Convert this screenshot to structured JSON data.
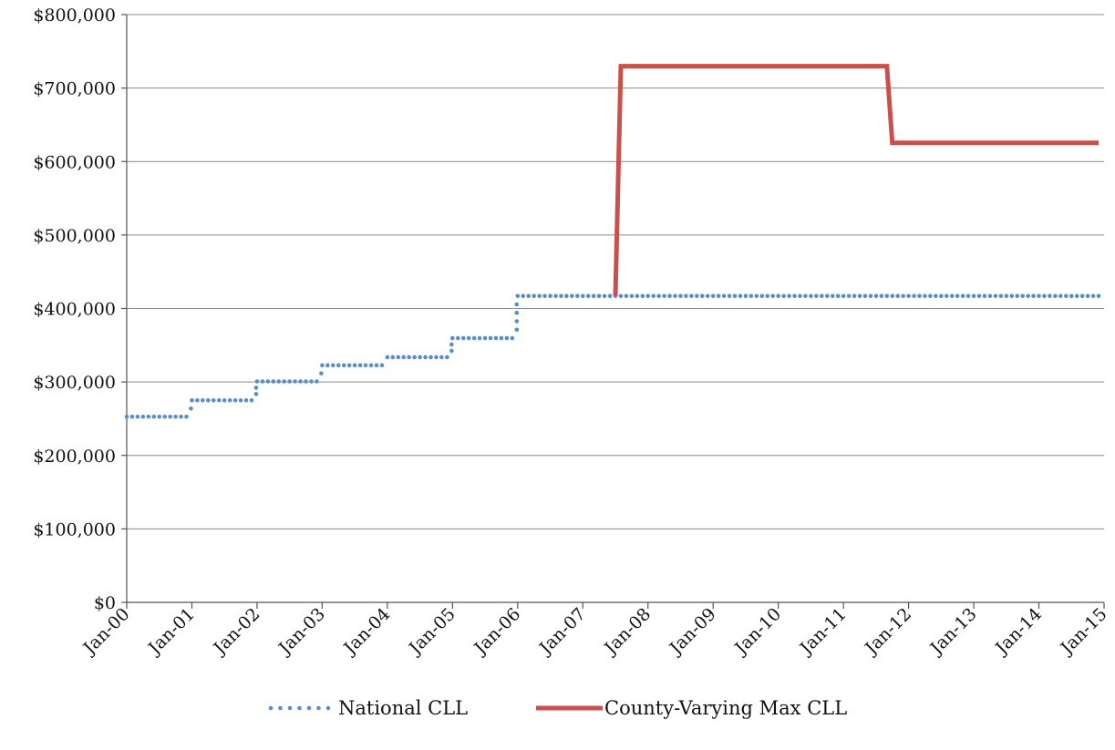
{
  "chart_data": {
    "type": "line",
    "title": "",
    "xlabel": "",
    "ylabel": "",
    "ylim": [
      0,
      800000
    ],
    "xlim": [
      "2000-01",
      "2015-01"
    ],
    "grid": true,
    "legend_position": "bottom",
    "y_ticks": [
      {
        "value": 0,
        "label": "$0"
      },
      {
        "value": 100000,
        "label": "$100,000"
      },
      {
        "value": 200000,
        "label": "$200,000"
      },
      {
        "value": 300000,
        "label": "$300,000"
      },
      {
        "value": 400000,
        "label": "$400,000"
      },
      {
        "value": 500000,
        "label": "$500,000"
      },
      {
        "value": 600000,
        "label": "$600,000"
      },
      {
        "value": 700000,
        "label": "$700,000"
      },
      {
        "value": 800000,
        "label": "$800,000"
      }
    ],
    "x_ticks": [
      {
        "date": "2000-01",
        "label": "Jan-00"
      },
      {
        "date": "2001-01",
        "label": "Jan-01"
      },
      {
        "date": "2002-01",
        "label": "Jan-02"
      },
      {
        "date": "2003-01",
        "label": "Jan-03"
      },
      {
        "date": "2004-01",
        "label": "Jan-04"
      },
      {
        "date": "2005-01",
        "label": "Jan-05"
      },
      {
        "date": "2006-01",
        "label": "Jan-06"
      },
      {
        "date": "2007-01",
        "label": "Jan-07"
      },
      {
        "date": "2008-01",
        "label": "Jan-08"
      },
      {
        "date": "2009-01",
        "label": "Jan-09"
      },
      {
        "date": "2010-01",
        "label": "Jan-10"
      },
      {
        "date": "2011-01",
        "label": "Jan-11"
      },
      {
        "date": "2012-01",
        "label": "Jan-12"
      },
      {
        "date": "2013-01",
        "label": "Jan-13"
      },
      {
        "date": "2014-01",
        "label": "Jan-14"
      },
      {
        "date": "2015-01",
        "label": "Jan-15"
      }
    ],
    "series": [
      {
        "name": "National CLL",
        "style": "dotted",
        "color": "#5b8ec8",
        "points": [
          {
            "x": "2000-01",
            "y": 252700
          },
          {
            "x": "2000-12",
            "y": 252700
          },
          {
            "x": "2001-01",
            "y": 275000
          },
          {
            "x": "2001-12",
            "y": 275000
          },
          {
            "x": "2002-01",
            "y": 300700
          },
          {
            "x": "2002-12",
            "y": 300700
          },
          {
            "x": "2003-01",
            "y": 322700
          },
          {
            "x": "2003-12",
            "y": 322700
          },
          {
            "x": "2004-01",
            "y": 333700
          },
          {
            "x": "2004-12",
            "y": 333700
          },
          {
            "x": "2005-01",
            "y": 359650
          },
          {
            "x": "2005-12",
            "y": 359650
          },
          {
            "x": "2006-01",
            "y": 417000
          },
          {
            "x": "2014-12",
            "y": 417000
          }
        ]
      },
      {
        "name": "County-Varying Max CLL",
        "style": "solid",
        "color": "#c9504c",
        "points": [
          {
            "x": "2007-07",
            "y": 417000
          },
          {
            "x": "2007-08",
            "y": 729750
          },
          {
            "x": "2011-09",
            "y": 729750
          },
          {
            "x": "2011-10",
            "y": 625500
          },
          {
            "x": "2014-12",
            "y": 625500
          }
        ]
      }
    ]
  }
}
